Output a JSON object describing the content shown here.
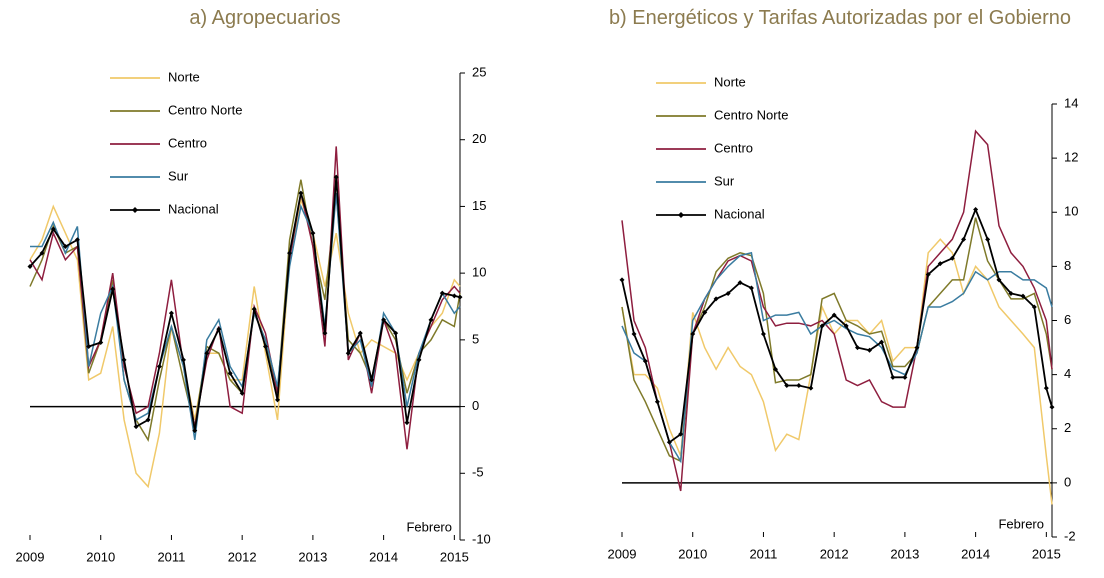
{
  "chart_data": [
    {
      "type": "line",
      "title": "a) Agropecuarios",
      "annotation": "Febrero",
      "reference_line": 0,
      "y_axis_side": "right",
      "legend": "upper left",
      "x": [
        2009,
        2009.17,
        2009.33,
        2009.5,
        2009.67,
        2009.83,
        2010,
        2010.17,
        2010.33,
        2010.5,
        2010.67,
        2010.83,
        2011,
        2011.17,
        2011.33,
        2011.5,
        2011.67,
        2011.83,
        2012,
        2012.17,
        2012.33,
        2012.5,
        2012.67,
        2012.83,
        2013,
        2013.17,
        2013.33,
        2013.5,
        2013.67,
        2013.83,
        2014,
        2014.17,
        2014.33,
        2014.5,
        2014.67,
        2014.83,
        2015,
        2015.08
      ],
      "xlim": [
        2009,
        2015.08
      ],
      "xticks": [
        2009,
        2010,
        2011,
        2012,
        2013,
        2014,
        2015
      ],
      "ylim": [
        -10,
        25
      ],
      "yticks": [
        -10,
        -5,
        0,
        5,
        10,
        15,
        20,
        25
      ],
      "series": [
        {
          "name": "Norte",
          "color": "#f0c96a",
          "values": [
            11,
            12.5,
            15,
            13,
            11,
            2,
            2.5,
            6,
            -1,
            -5,
            -6,
            -2,
            6,
            3,
            -1,
            4,
            4,
            2,
            2,
            9,
            4,
            -1,
            11,
            15.5,
            13,
            9,
            13,
            7,
            4,
            5,
            4.5,
            4,
            2,
            4,
            6,
            7,
            9.5,
            9
          ]
        },
        {
          "name": "Centro Norte",
          "color": "#7f7a2a",
          "values": [
            9,
            11,
            13.5,
            11.5,
            12,
            2.5,
            5,
            9.5,
            2,
            -1,
            -2.5,
            2,
            6,
            2,
            -1.5,
            4.5,
            4,
            2,
            1,
            7,
            5,
            1,
            12.5,
            17,
            12,
            8,
            16,
            5,
            4,
            2,
            6.5,
            5,
            1,
            4,
            5,
            6.5,
            6,
            8.5
          ]
        },
        {
          "name": "Centro",
          "color": "#8e1e3f",
          "values": [
            11,
            9.5,
            13,
            11,
            12,
            3,
            5,
            10,
            3,
            -0.5,
            0,
            4,
            9.5,
            3,
            -1.5,
            3.5,
            6,
            0,
            -0.5,
            7.5,
            5.5,
            1,
            11,
            16,
            12,
            4.5,
            19.5,
            3.5,
            5.5,
            1,
            6.5,
            4,
            -3.2,
            4,
            6,
            8,
            9,
            8.5
          ]
        },
        {
          "name": "Sur",
          "color": "#3a7ca0",
          "values": [
            12,
            12,
            13.8,
            11.5,
            13.5,
            3,
            7,
            9,
            2,
            -1,
            -0.5,
            3,
            6,
            3,
            -2.5,
            5,
            6.5,
            3,
            1.5,
            7,
            5,
            1.5,
            10.5,
            15,
            13,
            6,
            16,
            4,
            5,
            1.5,
            7,
            5.5,
            0,
            4,
            6.5,
            8.5,
            7,
            7.5
          ]
        },
        {
          "name": "Nacional",
          "color": "#000000",
          "markers": true,
          "values": [
            10.5,
            11.5,
            13.3,
            12,
            12.5,
            4.5,
            4.8,
            8.8,
            3.5,
            -1.5,
            -1.0,
            3,
            7,
            3.5,
            -1.8,
            4,
            5.8,
            2.5,
            1,
            7.3,
            4.5,
            0.5,
            11.5,
            16,
            13,
            5.5,
            17.2,
            4,
            5.5,
            2,
            6.5,
            5.5,
            -1.2,
            3.5,
            6.5,
            8.5,
            8.3,
            8.2
          ]
        }
      ]
    },
    {
      "type": "line",
      "title": "b) Energéticos y Tarifas Autorizadas por el Gobierno",
      "annotation": "Febrero",
      "reference_line": 0,
      "y_axis_side": "right",
      "legend": "upper left",
      "x": [
        2009,
        2009.17,
        2009.33,
        2009.5,
        2009.67,
        2009.83,
        2010,
        2010.17,
        2010.33,
        2010.5,
        2010.67,
        2010.83,
        2011,
        2011.17,
        2011.33,
        2011.5,
        2011.67,
        2011.83,
        2012,
        2012.17,
        2012.33,
        2012.5,
        2012.67,
        2012.83,
        2013,
        2013.17,
        2013.33,
        2013.5,
        2013.67,
        2013.83,
        2014,
        2014.17,
        2014.33,
        2014.5,
        2014.67,
        2014.83,
        2015,
        2015.08
      ],
      "xlim": [
        2009,
        2015.08
      ],
      "xticks": [
        2009,
        2010,
        2011,
        2012,
        2013,
        2014,
        2015
      ],
      "ylim": [
        -2,
        14
      ],
      "yticks": [
        -2,
        0,
        2,
        4,
        6,
        8,
        10,
        12,
        14
      ],
      "series": [
        {
          "name": "Norte",
          "color": "#f0c96a",
          "values": [
            6.5,
            4,
            4,
            3.5,
            2,
            1,
            6.3,
            5,
            4.2,
            5,
            4.3,
            4,
            3,
            1.2,
            1.8,
            1.6,
            4,
            6.5,
            5.5,
            6,
            6,
            5.5,
            6,
            4.5,
            5,
            5,
            8.5,
            9,
            8.5,
            7,
            8,
            7.5,
            6.5,
            6,
            5.5,
            5,
            1,
            -0.8
          ]
        },
        {
          "name": "Centro Norte",
          "color": "#7f7a2a",
          "values": [
            6.5,
            3.8,
            3,
            2,
            1,
            0.8,
            5.5,
            6.5,
            7.8,
            8.3,
            8.5,
            8.4,
            7,
            3.7,
            3.8,
            3.8,
            4,
            6.8,
            7,
            6,
            5.8,
            5.5,
            5.6,
            4.3,
            4.3,
            4.8,
            6.5,
            7,
            7.5,
            7.5,
            9.8,
            8.2,
            7.5,
            6.8,
            6.8,
            7,
            5.5,
            4.2
          ]
        },
        {
          "name": "Centro",
          "color": "#8e1e3f",
          "values": [
            9.7,
            6,
            5,
            3,
            1.5,
            -0.3,
            5.5,
            6.8,
            7.5,
            8.2,
            8.4,
            8.2,
            6.5,
            5.8,
            5.9,
            5.9,
            5.8,
            6,
            5.5,
            3.8,
            3.6,
            3.8,
            3,
            2.8,
            2.8,
            5,
            8,
            8.5,
            9,
            10,
            13,
            12.5,
            9.5,
            8.5,
            8,
            7.2,
            6,
            4.2
          ]
        },
        {
          "name": "Sur",
          "color": "#3a7ca0",
          "values": [
            5.8,
            4.8,
            4.5,
            3,
            1.5,
            0.8,
            6,
            6.8,
            7.5,
            8,
            8.4,
            8.5,
            6,
            6.2,
            6.2,
            6.3,
            5.5,
            5.8,
            6,
            5.7,
            5.5,
            5.4,
            5,
            4.2,
            4,
            4.8,
            6.5,
            6.5,
            6.7,
            7,
            7.8,
            7.5,
            7.8,
            7.8,
            7.5,
            7.5,
            7.2,
            6.5
          ]
        },
        {
          "name": "Nacional",
          "color": "#000000",
          "markers": true,
          "values": [
            7.5,
            5.5,
            4.5,
            3,
            1.5,
            1.8,
            5.5,
            6.3,
            6.8,
            7,
            7.4,
            7.2,
            5.5,
            4.2,
            3.6,
            3.6,
            3.5,
            5.8,
            6.2,
            5.8,
            5.0,
            4.9,
            5.2,
            3.9,
            3.9,
            5.0,
            7.7,
            8.1,
            8.3,
            9,
            10.1,
            9,
            7.5,
            7,
            6.9,
            6.5,
            3.5,
            2.8
          ]
        }
      ]
    }
  ]
}
